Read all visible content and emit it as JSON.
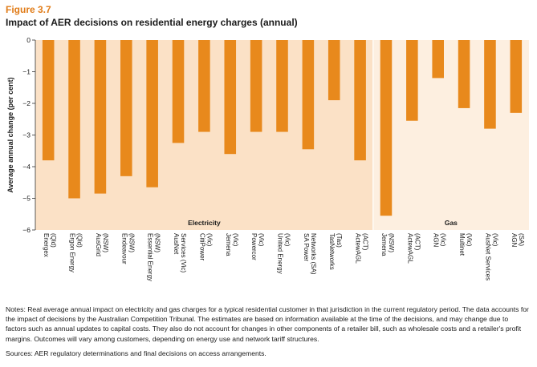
{
  "figure_label": "Figure 3.7",
  "title": "Impact of AER decisions on residential energy charges (annual)",
  "notes": "Notes: Real average annual impact on electricity and gas charges for a typical residential customer in that jurisdiction in the current regulatory period. The data accounts for the impact of decisions by the Australian Competition Tribunal. The estimates are based on information available at the time of the decisions, and may change due to factors such as annual updates to capital costs. They also do not account for changes in other components of a retailer bill, such as wholesale costs and a retailer's profit margins. Outcomes will vary among customers, depending on energy use and network tariff structures.",
  "sources": "Sources: AER regulatory determinations and final decisions on access arrangements.",
  "colors": {
    "bar": "#e8891c",
    "electricity_bg": "#fbe1c6",
    "gas_bg": "#fdefe0",
    "accent": "#e07b17"
  },
  "chart_data": {
    "type": "bar",
    "title": "Impact of AER decisions on residential energy charges (annual)",
    "ylabel": "Average annual change (per cent)",
    "xlabel": "",
    "ylim": [
      -6,
      0
    ],
    "yticks": [
      0,
      -1,
      -2,
      -3,
      -4,
      -5,
      -6
    ],
    "grid": false,
    "groups": [
      {
        "name": "Electricity",
        "start": 0,
        "end": 12
      },
      {
        "name": "Gas",
        "start": 13,
        "end": 18
      }
    ],
    "categories": [
      [
        "Energex",
        "(Qld)"
      ],
      [
        "Ergon Energy",
        "(Qld)"
      ],
      [
        "AusGrid",
        "(NSW)"
      ],
      [
        "Endeavour",
        "(NSW)"
      ],
      [
        "Essential Energy",
        "(NSW)"
      ],
      [
        "AusNet",
        "Services (Vic)"
      ],
      [
        "CitiPower",
        "(Vic)"
      ],
      [
        "Jemena",
        "(Vic)"
      ],
      [
        "Powercor",
        "(Vic)"
      ],
      [
        "United Energy",
        "(Vic)"
      ],
      [
        "SA Power",
        "Networks (SA)"
      ],
      [
        "TasNetworks",
        "(Tas)"
      ],
      [
        "ActewAGL",
        "(ACT)"
      ],
      [
        "Jemena",
        "(NSW)"
      ],
      [
        "ActewAGL",
        "(ACT)"
      ],
      [
        "AGN",
        "(Vic)"
      ],
      [
        "Multinet",
        "(Vic)"
      ],
      [
        "AusNet Services",
        "(Vic)"
      ],
      [
        "AGN",
        "(SA)"
      ]
    ],
    "values": [
      -3.8,
      -5.0,
      -4.85,
      -4.3,
      -4.65,
      -3.25,
      -2.9,
      -3.6,
      -2.9,
      -2.9,
      -3.45,
      -1.9,
      -3.8,
      -5.55,
      -2.55,
      -1.2,
      -2.15,
      -2.8,
      -2.3
    ]
  }
}
